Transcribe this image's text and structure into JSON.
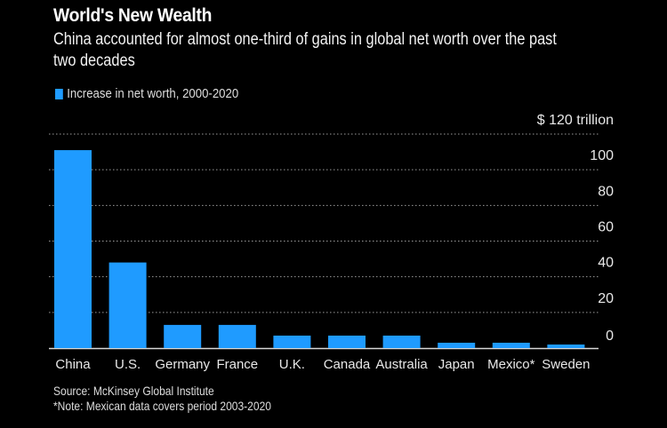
{
  "header": {
    "title": "World's New Wealth",
    "subtitle": "China accounted for almost one-third of gains in global net worth over the past two decades"
  },
  "legend": {
    "label": "Increase in net worth, 2000-2020",
    "color": "#1f9bff"
  },
  "footer": {
    "source": "Source: McKinsey Global Institute",
    "note": "*Note: Mexican data covers period 2003-2020"
  },
  "chart_data": {
    "type": "bar",
    "title": "World's New Wealth",
    "subtitle": "China accounted for almost one-third of gains in global net worth over the past two decades",
    "categories": [
      "China",
      "U.S.",
      "Germany",
      "France",
      "U.K.",
      "Canada",
      "Australia",
      "Japan",
      "Mexico*",
      "Sweden"
    ],
    "series": [
      {
        "name": "Increase in net worth, 2000-2020",
        "color": "#1f9bff",
        "values": [
          111,
          48,
          13,
          13,
          7,
          7,
          7,
          3,
          3,
          2
        ]
      }
    ],
    "xlabel": "",
    "ylabel": "",
    "yunit_label": "$ 120 trillion",
    "yticks": [
      0,
      20,
      40,
      60,
      80,
      100,
      120
    ],
    "ytick_labels": [
      "0",
      "20",
      "40",
      "60",
      "80",
      "100",
      "$ 120 trillion"
    ],
    "ylim": [
      0,
      120
    ],
    "y_axis_side": "right",
    "grid": true,
    "legend_position": "top-left"
  }
}
